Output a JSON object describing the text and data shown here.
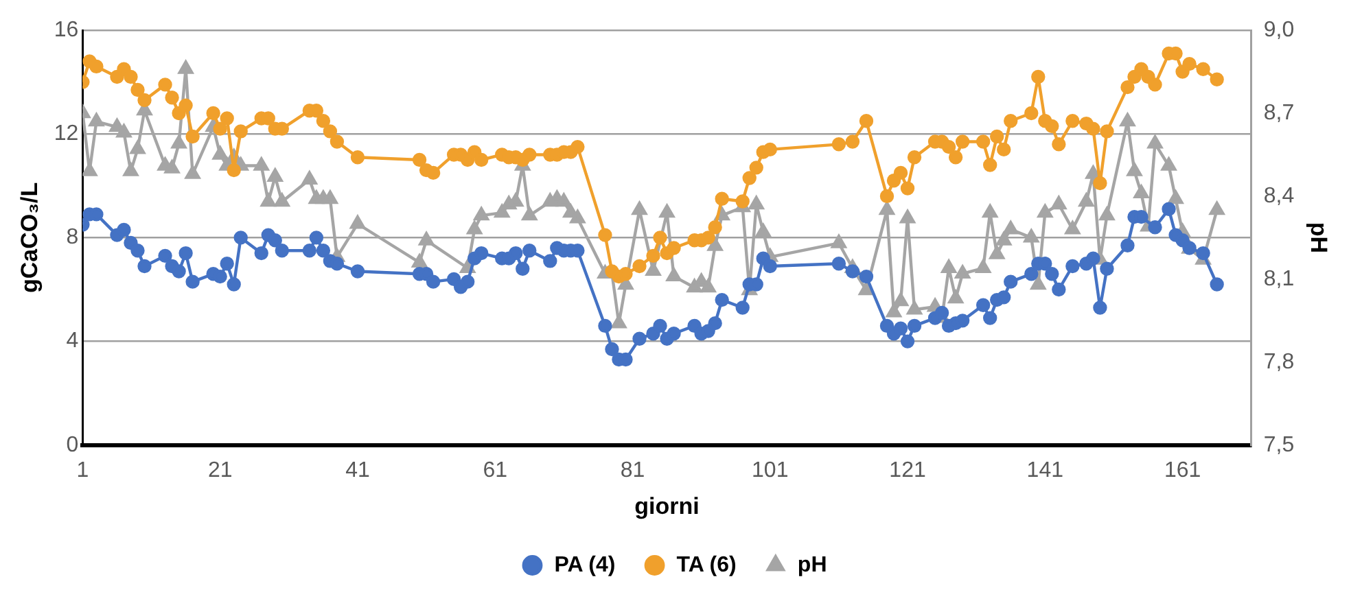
{
  "chart_data": {
    "type": "line",
    "xlabel": "giorni",
    "ylabel": "gCaCO₃/L",
    "y2label": "pH",
    "xlim": [
      1,
      171
    ],
    "xticks": [
      1,
      21,
      41,
      61,
      81,
      101,
      121,
      141,
      161
    ],
    "ylim": [
      0,
      16
    ],
    "yticks": [
      0,
      4,
      8,
      12,
      16
    ],
    "y2lim": [
      7.5,
      9.0
    ],
    "y2ticks": [
      {
        "value": 7.5,
        "label": "7,5"
      },
      {
        "value": 7.8,
        "label": "7,8"
      },
      {
        "value": 8.1,
        "label": "8,1"
      },
      {
        "value": 8.4,
        "label": "8,4"
      },
      {
        "value": 8.7,
        "label": "8,7"
      },
      {
        "value": 9.0,
        "label": "9,0"
      }
    ],
    "grid": "y",
    "legend": "bottom",
    "series": [
      {
        "name": "PA (4)",
        "color": "#4472c4",
        "marker": "circle",
        "x": [
          1,
          2,
          3,
          6,
          7,
          8,
          9,
          10,
          13,
          14,
          15,
          16,
          17,
          20,
          21,
          22,
          23,
          24,
          27,
          28,
          29,
          30,
          34,
          35,
          36,
          37,
          38,
          41,
          50,
          51,
          52,
          55,
          56,
          57,
          58,
          59,
          62,
          63,
          64,
          65,
          66,
          69,
          70,
          71,
          72,
          73,
          77,
          78,
          79,
          80,
          82,
          84,
          85,
          86,
          87,
          90,
          91,
          92,
          93,
          94,
          97,
          98,
          99,
          100,
          101,
          111,
          113,
          115,
          118,
          119,
          120,
          121,
          122,
          125,
          126,
          127,
          128,
          129,
          132,
          133,
          134,
          135,
          136,
          139,
          140,
          141,
          142,
          143,
          145,
          147,
          148,
          149,
          150,
          153,
          154,
          155,
          157,
          159,
          160,
          161,
          162,
          164,
          166
        ],
        "values": [
          8.5,
          8.9,
          8.9,
          8.1,
          8.3,
          7.8,
          7.5,
          6.9,
          7.3,
          6.9,
          6.7,
          7.4,
          6.3,
          6.6,
          6.5,
          7.0,
          6.2,
          8.0,
          7.4,
          8.1,
          7.9,
          7.5,
          7.5,
          8.0,
          7.5,
          7.1,
          7.0,
          6.7,
          6.6,
          6.6,
          6.3,
          6.4,
          6.1,
          6.3,
          7.2,
          7.4,
          7.2,
          7.2,
          7.4,
          6.8,
          7.5,
          7.1,
          7.6,
          7.5,
          7.5,
          7.5,
          4.6,
          3.7,
          3.3,
          3.3,
          4.1,
          4.3,
          4.6,
          4.1,
          4.3,
          4.6,
          4.3,
          4.4,
          4.7,
          5.6,
          5.3,
          6.2,
          6.2,
          7.2,
          6.9,
          7.0,
          6.7,
          6.5,
          4.6,
          4.3,
          4.5,
          4.0,
          4.6,
          4.9,
          5.1,
          4.6,
          4.7,
          4.8,
          5.4,
          4.9,
          5.6,
          5.7,
          6.3,
          6.6,
          7.0,
          7.0,
          6.6,
          6.0,
          6.9,
          7.0,
          7.2,
          5.3,
          6.8,
          7.7,
          8.8,
          8.8,
          8.4,
          9.1,
          8.1,
          7.9,
          7.6,
          7.4,
          6.2
        ]
      },
      {
        "name": "TA (6)",
        "color": "#f0a02c",
        "marker": "circle",
        "x": [
          1,
          2,
          3,
          6,
          7,
          8,
          9,
          10,
          13,
          14,
          15,
          16,
          17,
          20,
          21,
          22,
          23,
          24,
          27,
          28,
          29,
          30,
          34,
          35,
          36,
          37,
          38,
          41,
          50,
          51,
          52,
          55,
          56,
          57,
          58,
          59,
          62,
          63,
          64,
          65,
          66,
          69,
          70,
          71,
          72,
          73,
          77,
          78,
          79,
          80,
          82,
          84,
          85,
          86,
          87,
          90,
          91,
          92,
          93,
          94,
          97,
          98,
          99,
          100,
          101,
          111,
          113,
          115,
          118,
          119,
          120,
          121,
          122,
          125,
          126,
          127,
          128,
          129,
          132,
          133,
          134,
          135,
          136,
          139,
          140,
          141,
          142,
          143,
          145,
          147,
          148,
          149,
          150,
          153,
          154,
          155,
          156,
          157,
          159,
          160,
          161,
          162,
          164,
          166
        ],
        "values": [
          14.0,
          14.8,
          14.6,
          14.2,
          14.5,
          14.2,
          13.7,
          13.3,
          13.9,
          13.4,
          12.8,
          13.1,
          11.9,
          12.8,
          12.2,
          12.6,
          10.6,
          12.1,
          12.6,
          12.6,
          12.2,
          12.2,
          12.9,
          12.9,
          12.5,
          12.1,
          11.7,
          11.1,
          11.0,
          10.6,
          10.5,
          11.2,
          11.2,
          11.0,
          11.3,
          11.0,
          11.2,
          11.1,
          11.1,
          11.0,
          11.2,
          11.2,
          11.2,
          11.3,
          11.3,
          11.5,
          8.1,
          6.7,
          6.5,
          6.6,
          6.9,
          7.3,
          8.0,
          7.4,
          7.6,
          7.9,
          7.9,
          8.0,
          8.4,
          9.5,
          9.4,
          10.3,
          10.7,
          11.3,
          11.4,
          11.6,
          11.7,
          12.5,
          9.6,
          10.2,
          10.5,
          9.9,
          11.1,
          11.7,
          11.7,
          11.5,
          11.1,
          11.7,
          11.7,
          10.8,
          11.9,
          11.4,
          12.5,
          12.8,
          14.2,
          12.5,
          12.3,
          11.6,
          12.5,
          12.4,
          12.2,
          10.1,
          12.1,
          13.8,
          14.2,
          14.5,
          14.2,
          13.9,
          15.1,
          15.1,
          14.4,
          14.7,
          14.5,
          14.1
        ]
      },
      {
        "name": "pH",
        "color": "#a5a5a5",
        "marker": "triangle",
        "axis": "y2",
        "x": [
          1,
          2,
          3,
          6,
          7,
          8,
          9,
          10,
          13,
          14,
          15,
          16,
          17,
          20,
          21,
          22,
          23,
          24,
          27,
          28,
          29,
          30,
          34,
          35,
          36,
          37,
          38,
          41,
          50,
          51,
          57,
          58,
          59,
          62,
          63,
          64,
          65,
          66,
          69,
          70,
          71,
          72,
          73,
          77,
          78,
          79,
          80,
          82,
          84,
          86,
          87,
          90,
          91,
          92,
          93,
          94,
          97,
          98,
          99,
          100,
          101,
          111,
          113,
          115,
          118,
          119,
          120,
          121,
          122,
          125,
          126,
          127,
          128,
          129,
          132,
          133,
          134,
          135,
          136,
          139,
          140,
          141,
          143,
          145,
          147,
          148,
          149,
          150,
          153,
          154,
          155,
          156,
          157,
          159,
          160,
          161,
          162,
          164,
          166
        ],
        "values": [
          8.7,
          8.49,
          8.67,
          8.65,
          8.63,
          8.49,
          8.57,
          8.71,
          8.51,
          8.5,
          8.59,
          8.86,
          8.48,
          8.65,
          8.55,
          8.51,
          8.54,
          8.51,
          8.51,
          8.38,
          8.47,
          8.38,
          8.46,
          8.39,
          8.39,
          8.39,
          8.18,
          8.3,
          8.16,
          8.24,
          8.14,
          8.28,
          8.33,
          8.34,
          8.37,
          8.38,
          8.51,
          8.33,
          8.38,
          8.39,
          8.38,
          8.34,
          8.32,
          8.12,
          8.12,
          7.94,
          8.08,
          8.35,
          8.13,
          8.34,
          8.11,
          8.07,
          8.09,
          8.07,
          8.22,
          8.33,
          8.36,
          8.06,
          8.37,
          8.27,
          8.18,
          8.23,
          8.14,
          8.06,
          8.35,
          7.98,
          8.02,
          8.32,
          7.99,
          8.0,
          7.96,
          8.14,
          8.03,
          8.12,
          8.14,
          8.34,
          8.19,
          8.24,
          8.28,
          8.25,
          8.08,
          8.34,
          8.37,
          8.28,
          8.38,
          8.48,
          8.17,
          8.33,
          8.67,
          8.49,
          8.41,
          8.29,
          8.59,
          8.51,
          8.39,
          8.27,
          8.21,
          8.17,
          8.35
        ]
      }
    ]
  }
}
